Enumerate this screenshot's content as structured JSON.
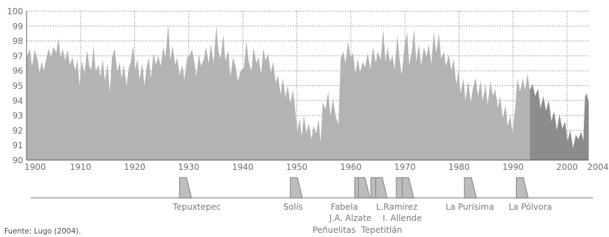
{
  "chart_data": {
    "type": "area",
    "xlim": [
      1900,
      2004
    ],
    "ylim": [
      90,
      100
    ],
    "yticks": [
      "100",
      "99",
      "98",
      "97",
      "96",
      "95",
      "94",
      "93",
      "92",
      "91",
      "90"
    ],
    "xticks": [
      "1900",
      "1910",
      "1920",
      "1930",
      "1940",
      "1950",
      "1960",
      "1970",
      "1980",
      "1990",
      "2000",
      "2004"
    ],
    "grid": true,
    "series": [
      {
        "color": "#b3b3b3",
        "points": [
          [
            1900,
            96.9
          ],
          [
            1900.6,
            97.5
          ],
          [
            1901,
            96.3
          ],
          [
            1901.5,
            97.4
          ],
          [
            1902,
            96.8
          ],
          [
            1902.4,
            95.9
          ],
          [
            1902.8,
            96.6
          ],
          [
            1903.2,
            96.0
          ],
          [
            1903.7,
            96.9
          ],
          [
            1904.1,
            97.5
          ],
          [
            1904.5,
            96.9
          ],
          [
            1905,
            97.6
          ],
          [
            1905.5,
            97.2
          ],
          [
            1905.9,
            98.2
          ],
          [
            1906.3,
            96.9
          ],
          [
            1906.7,
            97.5
          ],
          [
            1907.1,
            96.7
          ],
          [
            1907.6,
            97.4
          ],
          [
            1908,
            96.4
          ],
          [
            1908.5,
            96.9
          ],
          [
            1909,
            96.0
          ],
          [
            1909.4,
            96.8
          ],
          [
            1909.8,
            95.0
          ],
          [
            1910.2,
            96.7
          ],
          [
            1910.7,
            95.8
          ],
          [
            1911.2,
            97.4
          ],
          [
            1911.6,
            96.3
          ],
          [
            1912,
            96.1
          ],
          [
            1912.4,
            97.7
          ],
          [
            1912.8,
            95.9
          ],
          [
            1913.3,
            96.4
          ],
          [
            1913.7,
            95.6
          ],
          [
            1914.1,
            96.8
          ],
          [
            1914.5,
            95.3
          ],
          [
            1915,
            96.5
          ],
          [
            1915.4,
            94.5
          ],
          [
            1915.8,
            96.9
          ],
          [
            1916.3,
            97.5
          ],
          [
            1916.8,
            95.9
          ],
          [
            1917.2,
            96.6
          ],
          [
            1917.6,
            95.5
          ],
          [
            1918,
            96.4
          ],
          [
            1918.5,
            95.0
          ],
          [
            1918.9,
            96.2
          ],
          [
            1919.3,
            96.6
          ],
          [
            1919.7,
            97.7
          ],
          [
            1920.1,
            96.1
          ],
          [
            1920.5,
            96.8
          ],
          [
            1920.9,
            95.4
          ],
          [
            1921.4,
            96.5
          ],
          [
            1921.8,
            95.0
          ],
          [
            1922.2,
            96.2
          ],
          [
            1922.6,
            96.9
          ],
          [
            1923,
            95.5
          ],
          [
            1923.5,
            97.2
          ],
          [
            1923.9,
            96.4
          ],
          [
            1924.4,
            97.0
          ],
          [
            1924.8,
            96.3
          ],
          [
            1925.3,
            97.6
          ],
          [
            1925.7,
            96.9
          ],
          [
            1926.2,
            99.1
          ],
          [
            1926.6,
            96.7
          ],
          [
            1927,
            97.7
          ],
          [
            1927.5,
            96.4
          ],
          [
            1927.9,
            96.9
          ],
          [
            1928.3,
            95.7
          ],
          [
            1928.8,
            96.4
          ],
          [
            1929.2,
            95.4
          ],
          [
            1929.7,
            96.9
          ],
          [
            1930.1,
            97.0
          ],
          [
            1930.6,
            97.4
          ],
          [
            1931,
            96.7
          ],
          [
            1931.4,
            95.6
          ],
          [
            1931.9,
            97.1
          ],
          [
            1932.3,
            96.3
          ],
          [
            1932.8,
            96.8
          ],
          [
            1933.2,
            97.6
          ],
          [
            1933.7,
            96.5
          ],
          [
            1934.1,
            97.8
          ],
          [
            1934.6,
            96.5
          ],
          [
            1935.1,
            99.0
          ],
          [
            1935.5,
            97.3
          ],
          [
            1935.9,
            96.8
          ],
          [
            1936.4,
            98.4
          ],
          [
            1936.8,
            96.6
          ],
          [
            1937.3,
            97.4
          ],
          [
            1937.7,
            95.6
          ],
          [
            1938.2,
            96.9
          ],
          [
            1938.6,
            96.4
          ],
          [
            1939.1,
            95.3
          ],
          [
            1939.6,
            96.0
          ],
          [
            1940.2,
            96.2
          ],
          [
            1940.7,
            98.0
          ],
          [
            1941.1,
            96.6
          ],
          [
            1941.6,
            96.0
          ],
          [
            1942,
            97.6
          ],
          [
            1942.5,
            96.5
          ],
          [
            1942.9,
            96.9
          ],
          [
            1943.4,
            95.8
          ],
          [
            1943.8,
            97.5
          ],
          [
            1944.2,
            96.7
          ],
          [
            1944.7,
            97.1
          ],
          [
            1945.2,
            95.9
          ],
          [
            1945.6,
            96.6
          ],
          [
            1946.1,
            95.2
          ],
          [
            1946.5,
            95.7
          ],
          [
            1947,
            94.4
          ],
          [
            1947.4,
            95.5
          ],
          [
            1947.9,
            94.2
          ],
          [
            1948.3,
            95.0
          ],
          [
            1948.8,
            93.8
          ],
          [
            1949.3,
            94.7
          ],
          [
            1949.7,
            93.4
          ],
          [
            1950.1,
            91.9
          ],
          [
            1950.5,
            92.8
          ],
          [
            1950.9,
            91.6
          ],
          [
            1951.3,
            93.0
          ],
          [
            1951.8,
            91.8
          ],
          [
            1952.2,
            92.5
          ],
          [
            1952.7,
            91.4
          ],
          [
            1953.1,
            92.3
          ],
          [
            1953.6,
            91.8
          ],
          [
            1954,
            92.8
          ],
          [
            1954.4,
            91.2
          ],
          [
            1954.8,
            93.9
          ],
          [
            1955.3,
            93.4
          ],
          [
            1955.8,
            94.6
          ],
          [
            1956.2,
            93.0
          ],
          [
            1956.7,
            94.1
          ],
          [
            1957.2,
            92.9
          ],
          [
            1957.7,
            92.4
          ],
          [
            1958.1,
            96.8
          ],
          [
            1958.6,
            97.3
          ],
          [
            1959,
            96.5
          ],
          [
            1959.5,
            98.0
          ],
          [
            1959.9,
            96.9
          ],
          [
            1960.4,
            97.2
          ],
          [
            1960.8,
            95.8
          ],
          [
            1961.3,
            96.8
          ],
          [
            1961.7,
            95.9
          ],
          [
            1962.2,
            96.6
          ],
          [
            1962.6,
            96.2
          ],
          [
            1963.1,
            97.2
          ],
          [
            1963.6,
            96.1
          ],
          [
            1964.1,
            97.6
          ],
          [
            1964.6,
            96.5
          ],
          [
            1965,
            97.3
          ],
          [
            1965.5,
            96.7
          ],
          [
            1966,
            98.8
          ],
          [
            1966.4,
            96.6
          ],
          [
            1966.8,
            97.6
          ],
          [
            1967.2,
            96.6
          ],
          [
            1967.7,
            97.0
          ],
          [
            1968.1,
            96.1
          ],
          [
            1968.6,
            98.4
          ],
          [
            1969,
            96.8
          ],
          [
            1969.4,
            95.7
          ],
          [
            1969.9,
            97.6
          ],
          [
            1970.4,
            98.6
          ],
          [
            1970.8,
            96.4
          ],
          [
            1971.3,
            97.4
          ],
          [
            1971.7,
            98.8
          ],
          [
            1972.1,
            96.6
          ],
          [
            1972.6,
            97.8
          ],
          [
            1973,
            96.3
          ],
          [
            1973.5,
            97.6
          ],
          [
            1974,
            96.9
          ],
          [
            1974.4,
            97.8
          ],
          [
            1974.9,
            96.4
          ],
          [
            1975.3,
            98.6
          ],
          [
            1975.8,
            97.2
          ],
          [
            1976.3,
            98.5
          ],
          [
            1976.7,
            96.8
          ],
          [
            1977.2,
            97.3
          ],
          [
            1977.6,
            96.3
          ],
          [
            1978.1,
            97.1
          ],
          [
            1978.6,
            96.0
          ],
          [
            1979,
            96.8
          ],
          [
            1979.5,
            95.1
          ],
          [
            1979.9,
            96.0
          ],
          [
            1980.3,
            94.5
          ],
          [
            1980.8,
            95.5
          ],
          [
            1981.2,
            94.0
          ],
          [
            1981.7,
            95.3
          ],
          [
            1982.2,
            93.9
          ],
          [
            1982.6,
            94.9
          ],
          [
            1983.1,
            95.5
          ],
          [
            1983.5,
            94.3
          ],
          [
            1984,
            95.3
          ],
          [
            1984.4,
            94.0
          ],
          [
            1984.9,
            95.1
          ],
          [
            1985.3,
            93.7
          ],
          [
            1985.8,
            95.3
          ],
          [
            1986.3,
            94.3
          ],
          [
            1986.7,
            94.8
          ],
          [
            1987.2,
            93.5
          ],
          [
            1987.6,
            94.3
          ],
          [
            1988.1,
            92.8
          ],
          [
            1988.6,
            93.7
          ],
          [
            1989,
            92.3
          ],
          [
            1989.5,
            93.0
          ],
          [
            1989.9,
            91.8
          ],
          [
            1990.4,
            93.5
          ],
          [
            1990.8,
            95.5
          ],
          [
            1991.3,
            94.6
          ],
          [
            1991.8,
            95.5
          ],
          [
            1992.2,
            94.7
          ],
          [
            1992.7,
            95.8
          ],
          [
            1993.1,
            94.7
          ]
        ]
      },
      {
        "color": "#8c8c8c",
        "points": [
          [
            1993.1,
            94.7
          ],
          [
            1993.6,
            95.1
          ],
          [
            1994.1,
            94.3
          ],
          [
            1994.6,
            94.8
          ],
          [
            1995.1,
            93.5
          ],
          [
            1995.6,
            94.3
          ],
          [
            1996.1,
            93.3
          ],
          [
            1996.6,
            94.0
          ],
          [
            1997.1,
            92.6
          ],
          [
            1997.6,
            93.3
          ],
          [
            1998.1,
            92.0
          ],
          [
            1998.6,
            93.1
          ],
          [
            1999.1,
            92.1
          ],
          [
            1999.6,
            92.6
          ],
          [
            2000.1,
            91.3
          ],
          [
            2000.6,
            92.0
          ],
          [
            2001.1,
            90.8
          ],
          [
            2001.6,
            91.7
          ],
          [
            2002.1,
            91.4
          ],
          [
            2002.6,
            91.9
          ],
          [
            2003,
            91.3
          ],
          [
            2003.3,
            94.2
          ],
          [
            2003.6,
            94.5
          ],
          [
            2004,
            93.9
          ]
        ]
      }
    ]
  },
  "dam_timeline": {
    "line_color": "#b3b3b3",
    "dams": [
      {
        "name": "Tepuxtepec",
        "start": 1928.3,
        "end": 1929.6,
        "label_x": 1931.5,
        "row": 1
      },
      {
        "name": "Solís",
        "start": 1948.8,
        "end": 1950.1,
        "label_x": 1949.3,
        "row": 1
      },
      {
        "name": "Fabela",
        "start": 1960.7,
        "end": 1961.9,
        "label_x": 1958.8,
        "row": 1
      },
      {
        "name": "J.A. Alzate",
        "start": 1961.4,
        "end": 1962.6,
        "label_x": 1959.9,
        "row": 2
      },
      {
        "name": "Peñuelitas",
        "start": 1963.7,
        "end": 1964.9,
        "label_x": 1956.9,
        "row": 3
      },
      {
        "name": "Tepetitlán",
        "start": 1964.6,
        "end": 1965.8,
        "label_x": 1965.7,
        "row": 3
      },
      {
        "name": "L.Ramirez",
        "start": 1968.4,
        "end": 1969.6,
        "label_x": 1968.5,
        "row": 1
      },
      {
        "name": "I. Allende",
        "start": 1969.5,
        "end": 1970.7,
        "label_x": 1969.5,
        "row": 2
      },
      {
        "name": "La Purísima",
        "start": 1981.0,
        "end": 1982.3,
        "label_x": 1982.0,
        "row": 1
      },
      {
        "name": "La Pólvora",
        "start": 1990.6,
        "end": 1991.9,
        "label_x": 1993.2,
        "row": 1
      }
    ]
  },
  "source_note": "Fuente: Lugo (2004)."
}
